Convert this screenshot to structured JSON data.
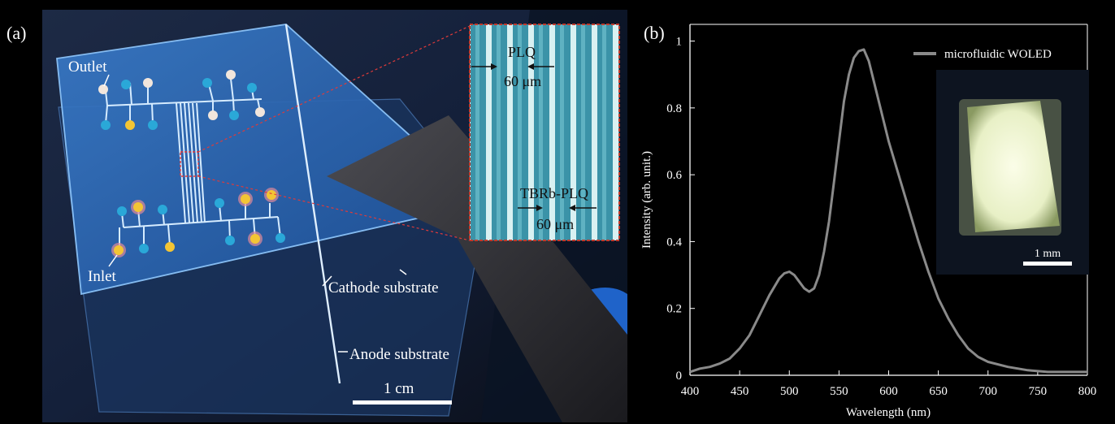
{
  "panel_a": {
    "label": "(a)",
    "annotations": {
      "outlet": "Outlet",
      "inlet": "Inlet",
      "cathode": "Cathode substrate",
      "anode": "Anode substrate",
      "scale": "1 cm"
    },
    "inset": {
      "top_label": "PLQ",
      "top_width": "60 μm",
      "bottom_label": "TBRb-PLQ",
      "bottom_width": "60 μm"
    }
  },
  "panel_b": {
    "label": "(b)",
    "inset_scale": "1 mm"
  },
  "chart_data": {
    "type": "line",
    "xlabel": "Wavelength (nm)",
    "ylabel": "Intensity (arb. unit.)",
    "xlim": [
      400,
      800
    ],
    "ylim": [
      0,
      1.05
    ],
    "xticks": [
      400,
      450,
      500,
      550,
      600,
      650,
      700,
      750,
      800
    ],
    "yticks": [
      0,
      0.2,
      0.4,
      0.6,
      0.8,
      1
    ],
    "legend_position": "top-right",
    "series": [
      {
        "name": "microfluidic WOLED",
        "color": "#8a8a8a",
        "x": [
          400,
          410,
          420,
          430,
          440,
          450,
          460,
          470,
          480,
          490,
          495,
          500,
          505,
          510,
          515,
          520,
          525,
          530,
          535,
          540,
          545,
          550,
          555,
          560,
          565,
          570,
          575,
          580,
          585,
          590,
          595,
          600,
          610,
          620,
          630,
          640,
          650,
          660,
          670,
          680,
          690,
          700,
          720,
          740,
          760,
          780,
          800
        ],
        "y": [
          0.01,
          0.02,
          0.025,
          0.035,
          0.05,
          0.08,
          0.12,
          0.18,
          0.24,
          0.29,
          0.305,
          0.31,
          0.3,
          0.28,
          0.26,
          0.25,
          0.26,
          0.3,
          0.37,
          0.46,
          0.58,
          0.7,
          0.82,
          0.9,
          0.95,
          0.97,
          0.975,
          0.94,
          0.88,
          0.82,
          0.76,
          0.7,
          0.6,
          0.5,
          0.4,
          0.31,
          0.23,
          0.17,
          0.12,
          0.08,
          0.055,
          0.04,
          0.025,
          0.015,
          0.01,
          0.01,
          0.01
        ]
      }
    ]
  },
  "colors": {
    "glass": "#2d6ab4",
    "channel": "#d6ecff",
    "dot_cyan": "#2aa8d8",
    "dot_yellow": "#f3c534",
    "dot_pink": "#e08a9a",
    "inset_border": "#c0392b",
    "spectrum_line": "#8a8a8a",
    "oled_glow": "#f2f7d8"
  }
}
